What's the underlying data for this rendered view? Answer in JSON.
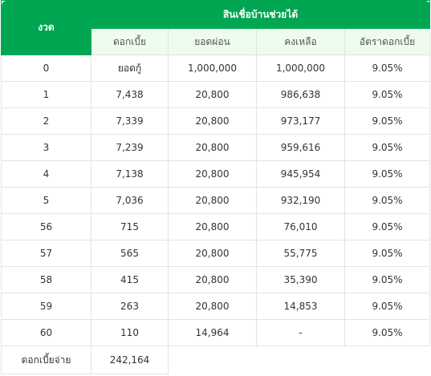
{
  "table": {
    "corner_label": "งวด",
    "group_label": "สินเชื่อบ้านช่วยได้",
    "columns": [
      "ดอกเบี้ย",
      "ยอดผ่อน",
      "คงเหลือ",
      "อัตราดอกเบี้ย"
    ],
    "rows": [
      {
        "period": "0",
        "interest": "ยอดกู้",
        "payment": "1,000,000",
        "balance": "1,000,000",
        "rate": "9.05%"
      },
      {
        "period": "1",
        "interest": "7,438",
        "payment": "20,800",
        "balance": "986,638",
        "rate": "9.05%"
      },
      {
        "period": "2",
        "interest": "7,339",
        "payment": "20,800",
        "balance": "973,177",
        "rate": "9.05%"
      },
      {
        "period": "3",
        "interest": "7,239",
        "payment": "20,800",
        "balance": "959,616",
        "rate": "9.05%"
      },
      {
        "period": "4",
        "interest": "7,138",
        "payment": "20,800",
        "balance": "945,954",
        "rate": "9.05%"
      },
      {
        "period": "5",
        "interest": "7,036",
        "payment": "20,800",
        "balance": "932,190",
        "rate": "9.05%"
      },
      {
        "period": "56",
        "interest": "715",
        "payment": "20,800",
        "balance": "76,010",
        "rate": "9.05%"
      },
      {
        "period": "57",
        "interest": "565",
        "payment": "20,800",
        "balance": "55,775",
        "rate": "9.05%"
      },
      {
        "period": "58",
        "interest": "415",
        "payment": "20,800",
        "balance": "35,390",
        "rate": "9.05%"
      },
      {
        "period": "59",
        "interest": "263",
        "payment": "20,800",
        "balance": "14,853",
        "rate": "9.05%"
      },
      {
        "period": "60",
        "interest": "110",
        "payment": "14,964",
        "balance": "-",
        "rate": "9.05%"
      }
    ],
    "footer": {
      "label": "ดอกเบี้ยจ่าย",
      "value": "242,164"
    }
  },
  "colors": {
    "header_green": "#00a651",
    "subheader_bg": "#eefbef",
    "border": "#e3e3e3",
    "text": "#333333"
  }
}
